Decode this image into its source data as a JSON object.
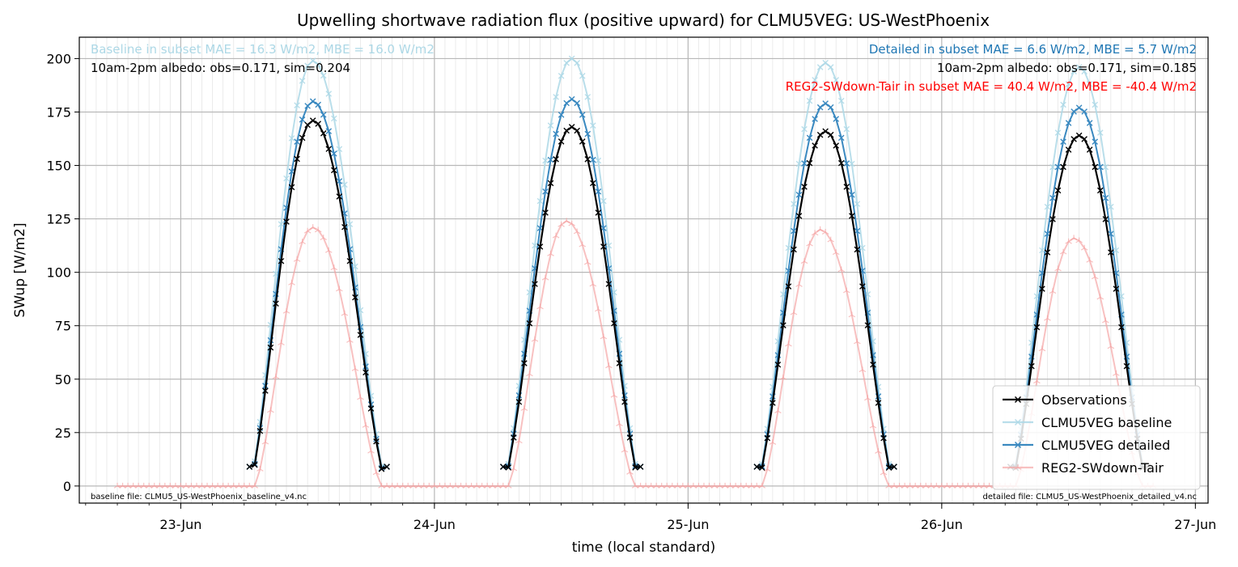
{
  "chart_data": {
    "type": "line",
    "title": "Upwelling shortwave radiation flux (positive upward) for CLMU5VEG: US-WestPhoenix",
    "xlabel": "time (local standard)",
    "ylabel": "SWup [W/m2]",
    "ylim": [
      -8,
      210
    ],
    "yticks": [
      0,
      25,
      50,
      75,
      100,
      125,
      150,
      175,
      200
    ],
    "xlim_days": [
      22.6,
      27.05
    ],
    "xtick_labels": [
      "23-Jun",
      "24-Jun",
      "25-Jun",
      "26-Jun",
      "27-Jun"
    ],
    "xtick_days": [
      23,
      24,
      25,
      26,
      27
    ],
    "x_sampling": "half-hourly",
    "grid": true,
    "legend_position": "lower-right",
    "series": [
      {
        "name": "Observations",
        "color": "#000000",
        "marker": "x",
        "days": [
          {
            "day": 23,
            "start_hour": 6.5,
            "end_hour": 19.5,
            "peak": 171,
            "peak_hour": 12.5
          },
          {
            "day": 24,
            "start_hour": 6.5,
            "end_hour": 19.5,
            "peak": 168,
            "peak_hour": 13.0
          },
          {
            "day": 25,
            "start_hour": 6.5,
            "end_hour": 19.5,
            "peak": 166,
            "peak_hour": 13.0
          },
          {
            "day": 26,
            "start_hour": 6.5,
            "end_hour": 19.5,
            "peak": 164,
            "peak_hour": 13.0
          }
        ]
      },
      {
        "name": "CLMU5VEG baseline",
        "color": "#add8e6",
        "marker": "x",
        "days": [
          {
            "day": 23,
            "start_hour": 6.5,
            "end_hour": 19.5,
            "peak": 199,
            "peak_hour": 12.5
          },
          {
            "day": 24,
            "start_hour": 6.5,
            "end_hour": 19.5,
            "peak": 200,
            "peak_hour": 13.0
          },
          {
            "day": 25,
            "start_hour": 6.5,
            "end_hour": 19.5,
            "peak": 198,
            "peak_hour": 13.0
          },
          {
            "day": 26,
            "start_hour": 6.5,
            "end_hour": 19.5,
            "peak": 196,
            "peak_hour": 13.0
          }
        ]
      },
      {
        "name": "CLMU5VEG detailed",
        "color": "#3a89c0",
        "marker": "x",
        "days": [
          {
            "day": 23,
            "start_hour": 6.5,
            "end_hour": 19.5,
            "peak": 180,
            "peak_hour": 12.5
          },
          {
            "day": 24,
            "start_hour": 6.5,
            "end_hour": 19.5,
            "peak": 181,
            "peak_hour": 13.0
          },
          {
            "day": 25,
            "start_hour": 6.5,
            "end_hour": 19.5,
            "peak": 179,
            "peak_hour": 13.0
          },
          {
            "day": 26,
            "start_hour": 6.5,
            "end_hour": 19.5,
            "peak": 177,
            "peak_hour": 13.0
          }
        ]
      },
      {
        "name": "REG2-SWdown-Tair",
        "color": "#f4a0a0",
        "marker": "tri",
        "range_days": [
          22.75,
          26.85
        ],
        "days": [
          {
            "day": 23,
            "start_hour": 7.0,
            "end_hour": 19.0,
            "peak": 121,
            "peak_hour": 12.5
          },
          {
            "day": 24,
            "start_hour": 7.0,
            "end_hour": 19.0,
            "peak": 124,
            "peak_hour": 12.5
          },
          {
            "day": 25,
            "start_hour": 7.0,
            "end_hour": 19.0,
            "peak": 120,
            "peak_hour": 12.5
          },
          {
            "day": 26,
            "start_hour": 7.0,
            "end_hour": 19.0,
            "peak": 116,
            "peak_hour": 12.5
          }
        ]
      }
    ],
    "annotations": {
      "baseline_stats": "Baseline in subset MAE = 16.3 W/m2, MBE = 16.0 W/m2",
      "baseline_albedo": "10am-2pm albedo: obs=0.171, sim=0.204",
      "detailed_stats": "Detailed in subset MAE = 6.6 W/m2, MBE = 5.7 W/m2",
      "detailed_albedo": "10am-2pm albedo: obs=0.171, sim=0.185",
      "reg2_stats": "REG2-SWdown-Tair in subset MAE = 40.4 W/m2, MBE = -40.4 W/m2",
      "baseline_file": "baseline file: CLMU5_US-WestPhoenix_baseline_v4.nc",
      "detailed_file": "detailed file: CLMU5_US-WestPhoenix_detailed_v4.nc"
    },
    "annotation_colors": {
      "baseline": "#add8e6",
      "detailed": "#1f77b4",
      "reg2": "#ff0000",
      "neutral": "#000000"
    }
  }
}
